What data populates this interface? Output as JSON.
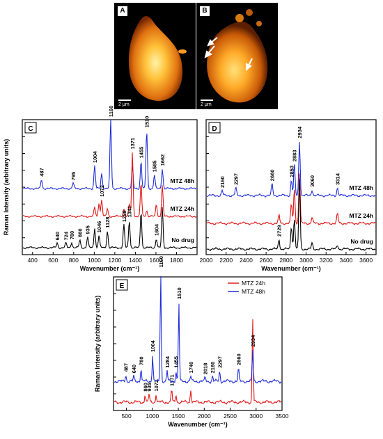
{
  "images": [
    {
      "label": "A",
      "scale": "2 μm"
    },
    {
      "label": "B",
      "scale": "2 μm"
    }
  ],
  "chart_data": [
    {
      "panel": "C",
      "type": "line",
      "xlabel": "Wavenumber (cm⁻¹)",
      "ylabel": "Raman Intensity (arbitrary units)",
      "xlim": [
        300,
        2000
      ],
      "xticks": [
        400,
        600,
        800,
        1000,
        1200,
        1400,
        1600,
        1800
      ],
      "series": [
        {
          "name": "MTZ 48h",
          "color": "#1f2fd8",
          "peaks": [
            [
              487,
              0.6
            ],
            [
              795,
              0.35
            ],
            [
              1004,
              1.5
            ],
            [
              1072,
              1.0
            ],
            [
              1160,
              4.5
            ],
            [
              1371,
              1.4
            ],
            [
              1455,
              1.8
            ],
            [
              1510,
              3.8
            ],
            [
              1585,
              0.9
            ],
            [
              1662,
              1.3
            ]
          ],
          "labels": [
            "487",
            "795",
            "1004",
            "1160",
            "1455",
            "1510",
            "1585",
            "1662"
          ]
        },
        {
          "name": "MTZ 24h",
          "color": "#e01818",
          "peaks": [
            [
              1004,
              0.6
            ],
            [
              1046,
              0.9
            ],
            [
              1072,
              1.1
            ],
            [
              1128,
              0.5
            ],
            [
              1288,
              0.5
            ],
            [
              1341,
              0.8
            ],
            [
              1371,
              4.2
            ],
            [
              1455,
              2.2
            ],
            [
              1510,
              0.4
            ],
            [
              1604,
              0.8
            ],
            [
              1662,
              2.0
            ]
          ],
          "labels": [
            "1072",
            "1371"
          ]
        },
        {
          "name": "No drug",
          "color": "#000000",
          "peaks": [
            [
              640,
              0.3
            ],
            [
              724,
              0.3
            ],
            [
              780,
              0.35
            ],
            [
              860,
              0.5
            ],
            [
              935,
              0.7
            ],
            [
              1004,
              1.3
            ],
            [
              1046,
              0.8
            ],
            [
              1128,
              1.1
            ],
            [
              1288,
              1.5
            ],
            [
              1341,
              1.8
            ],
            [
              1455,
              2.4
            ],
            [
              1604,
              0.6
            ],
            [
              1662,
              2.6
            ]
          ],
          "labels": [
            "640",
            "724",
            "780",
            "860",
            "935",
            "1046",
            "1128",
            "1288",
            "1341",
            "1604"
          ]
        }
      ]
    },
    {
      "panel": "D",
      "type": "line",
      "xlabel": "Wavenumber (cm⁻¹)",
      "ylabel": "",
      "xlim": [
        2000,
        3700
      ],
      "xticks": [
        2000,
        2200,
        2400,
        2600,
        2800,
        3000,
        3200,
        3400,
        3600
      ],
      "series": [
        {
          "name": "MTZ 48h",
          "color": "#1f2fd8",
          "peaks": [
            [
              2160,
              0.25
            ],
            [
              2297,
              0.4
            ],
            [
              2660,
              0.6
            ],
            [
              2853,
              0.8
            ],
            [
              2883,
              1.6
            ],
            [
              2934,
              2.8
            ],
            [
              3060,
              0.3
            ],
            [
              3314,
              0.4
            ]
          ],
          "labels": [
            "2160",
            "2297",
            "2660",
            "2853",
            "2883",
            "2934",
            "3060",
            "3314"
          ]
        },
        {
          "name": "MTZ 24h",
          "color": "#e01818",
          "peaks": [
            [
              2729,
              0.4
            ],
            [
              2853,
              1.0
            ],
            [
              2883,
              1.8
            ],
            [
              2934,
              2.6
            ],
            [
              3060,
              0.3
            ],
            [
              3314,
              0.5
            ]
          ],
          "labels": []
        },
        {
          "name": "No drug",
          "color": "#000000",
          "peaks": [
            [
              2729,
              0.5
            ],
            [
              2853,
              1.2
            ],
            [
              2883,
              1.6
            ],
            [
              2934,
              3.6
            ],
            [
              3060,
              0.3
            ],
            [
              3314,
              0.2
            ]
          ],
          "labels": [
            "2729"
          ]
        }
      ]
    },
    {
      "panel": "E",
      "type": "line",
      "xlabel": "Wavenumber (cm⁻¹)",
      "ylabel": "Raman Intensity (arbitrary units)",
      "xlim": [
        250,
        3500
      ],
      "xticks": [
        500,
        1000,
        1500,
        2000,
        2500,
        3000,
        3500
      ],
      "legend": "top-right",
      "series": [
        {
          "name": "MTZ 24h",
          "color": "#e01818",
          "peaks": [
            [
              860,
              0.3
            ],
            [
              935,
              0.3
            ],
            [
              1072,
              0.3
            ],
            [
              1371,
              0.5
            ],
            [
              1455,
              0.3
            ],
            [
              1740,
              0.5
            ],
            [
              2934,
              3.2
            ]
          ],
          "labels": [
            "860",
            "935",
            "1072",
            "1371"
          ]
        },
        {
          "name": "MTZ 48h",
          "color": "#1f2fd8",
          "peaks": [
            [
              487,
              0.25
            ],
            [
              640,
              0.2
            ],
            [
              780,
              0.5
            ],
            [
              1004,
              1.0
            ],
            [
              1160,
              4.2
            ],
            [
              1284,
              0.4
            ],
            [
              1455,
              0.4
            ],
            [
              1510,
              3.0
            ],
            [
              1740,
              0.2
            ],
            [
              2018,
              0.15
            ],
            [
              2160,
              0.2
            ],
            [
              2297,
              0.4
            ],
            [
              2660,
              0.5
            ],
            [
              2934,
              1.2
            ]
          ],
          "labels": [
            "487",
            "640",
            "780",
            "1004",
            "1160",
            "1284",
            "1455",
            "1510",
            "1740",
            "2018",
            "2160",
            "2297",
            "2660",
            "2934"
          ]
        }
      ]
    }
  ]
}
